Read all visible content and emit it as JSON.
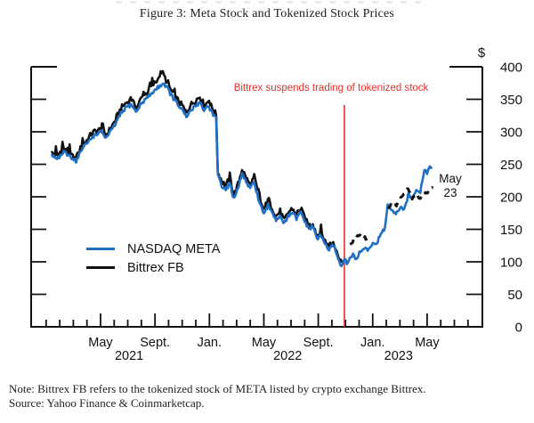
{
  "figure": {
    "title": "Figure 3: Meta Stock and Tokenized Stock Prices"
  },
  "annotations": {
    "currency": "$",
    "suspension": "Bittrex suspends trading of tokenized stock",
    "last_point": {
      "line1": "May",
      "line2": "23"
    }
  },
  "legend": [
    {
      "label": "NASDAQ META",
      "color": "#1f6fc5"
    },
    {
      "label": "Bittrex FB",
      "color": "#111111"
    }
  ],
  "notes": {
    "note": "Note: Bittrex FB refers to the tokenized stock of META listed by crypto exchange Bittrex.",
    "source": "Source: Yahoo Finance & Coinmarketcap."
  },
  "colors": {
    "meta_blue": "#1f6fc5",
    "bittrex_black": "#111111",
    "event_red": "#e3312d",
    "axis": "#111111"
  },
  "chart_data": {
    "type": "line",
    "title": "Figure 3: Meta Stock and Tokenized Stock Prices",
    "ylabel": "$",
    "ylim": [
      0,
      400
    ],
    "y_ticks": [
      400,
      350,
      300,
      250,
      200,
      150,
      100,
      50,
      0
    ],
    "x_unit": "months_since_jan_2021",
    "xlim": [
      -1.1,
      32.06
    ],
    "grid": false,
    "legend_position": "inside-left",
    "x_major_ticks": [
      {
        "m": 4,
        "label": "May"
      },
      {
        "m": 8,
        "label": "Sept."
      },
      {
        "m": 12,
        "label": "Jan."
      },
      {
        "m": 16,
        "label": "May"
      },
      {
        "m": 20,
        "label": "Sept."
      },
      {
        "m": 24,
        "label": "Jan."
      },
      {
        "m": 28,
        "label": "May"
      }
    ],
    "x_year_labels": [
      {
        "m": 6.1,
        "label": "2021"
      },
      {
        "m": 17.75,
        "label": "2022"
      },
      {
        "m": 25.9,
        "label": "2023"
      }
    ],
    "event_line": {
      "m": 21.92,
      "label": "Bittrex suspends trading of tokenized stock",
      "color": "#e3312d"
    },
    "series": [
      {
        "name": "Bittrex FB",
        "color": "#111111",
        "style": "solid",
        "width": 2.6,
        "noise": 4.5,
        "spike": 12,
        "segments": [
          [
            [
              0.4,
              268
            ],
            [
              0.8,
              262
            ],
            [
              1.2,
              274
            ],
            [
              1.8,
              264
            ],
            [
              2.2,
              258
            ],
            [
              2.6,
              278
            ],
            [
              3.0,
              287
            ],
            [
              3.4,
              299
            ],
            [
              3.8,
              302
            ],
            [
              4.1,
              304
            ],
            [
              4.4,
              294
            ],
            [
              4.8,
              308
            ],
            [
              5.1,
              318
            ],
            [
              5.5,
              336
            ],
            [
              5.9,
              345
            ],
            [
              6.3,
              350
            ],
            [
              6.6,
              335
            ],
            [
              7.0,
              352
            ],
            [
              7.4,
              360
            ],
            [
              7.8,
              371
            ],
            [
              8.2,
              380
            ],
            [
              8.5,
              393
            ],
            [
              8.9,
              376
            ],
            [
              9.2,
              363
            ],
            [
              9.6,
              351
            ],
            [
              10.0,
              340
            ],
            [
              10.3,
              329
            ],
            [
              10.6,
              341
            ],
            [
              11.0,
              349
            ],
            [
              11.3,
              354
            ],
            [
              11.6,
              339
            ],
            [
              11.9,
              347
            ],
            [
              12.2,
              337
            ],
            [
              12.5,
              326
            ],
            [
              12.62,
              238
            ],
            [
              12.9,
              225
            ],
            [
              13.2,
              216
            ],
            [
              13.5,
              230
            ],
            [
              13.8,
              202
            ],
            [
              14.1,
              219
            ],
            [
              14.4,
              243
            ],
            [
              14.7,
              229
            ],
            [
              15.0,
              218
            ],
            [
              15.3,
              231
            ],
            [
              15.6,
              202
            ],
            [
              16.0,
              178
            ],
            [
              16.3,
              193
            ],
            [
              16.6,
              184
            ],
            [
              16.9,
              170
            ],
            [
              17.2,
              178
            ],
            [
              17.5,
              163
            ],
            [
              17.8,
              176
            ],
            [
              18.1,
              182
            ],
            [
              18.4,
              171
            ],
            [
              18.7,
              182
            ],
            [
              19.0,
              168
            ],
            [
              19.3,
              155
            ],
            [
              19.6,
              160
            ],
            [
              19.9,
              141
            ],
            [
              20.2,
              146
            ],
            [
              20.5,
              132
            ],
            [
              20.8,
              123
            ],
            [
              21.1,
              131
            ],
            [
              21.35,
              119
            ],
            [
              21.55,
              103
            ],
            [
              21.75,
              99
            ]
          ]
        ]
      },
      {
        "name": "NASDAQ META",
        "color": "#1f6fc5",
        "style": "solid",
        "width": 2.6,
        "noise": 3,
        "spike": 0,
        "segments": [
          [
            [
              0.4,
              265
            ],
            [
              0.8,
              258
            ],
            [
              1.3,
              268
            ],
            [
              1.8,
              262
            ],
            [
              2.2,
              255
            ],
            [
              2.6,
              272
            ],
            [
              3.0,
              282
            ],
            [
              3.4,
              292
            ],
            [
              3.8,
              298
            ],
            [
              4.1,
              300
            ],
            [
              4.4,
              290
            ],
            [
              4.8,
              302
            ],
            [
              5.1,
              312
            ],
            [
              5.5,
              328
            ],
            [
              5.9,
              338
            ],
            [
              6.3,
              342
            ],
            [
              6.6,
              330
            ],
            [
              7.0,
              344
            ],
            [
              7.4,
              352
            ],
            [
              7.8,
              360
            ],
            [
              8.2,
              368
            ],
            [
              8.6,
              375
            ],
            [
              8.9,
              368
            ],
            [
              9.2,
              356
            ],
            [
              9.6,
              344
            ],
            [
              10.0,
              333
            ],
            [
              10.3,
              322
            ],
            [
              10.6,
              332
            ],
            [
              11.0,
              340
            ],
            [
              11.3,
              346
            ],
            [
              11.6,
              333
            ],
            [
              11.9,
              340
            ],
            [
              12.2,
              330
            ],
            [
              12.5,
              320
            ],
            [
              12.62,
              232
            ],
            [
              12.9,
              218
            ],
            [
              13.2,
              210
            ],
            [
              13.5,
              222
            ],
            [
              13.8,
              196
            ],
            [
              14.1,
              212
            ],
            [
              14.4,
              236
            ],
            [
              14.7,
              222
            ],
            [
              15.0,
              212
            ],
            [
              15.3,
              224
            ],
            [
              15.6,
              196
            ],
            [
              16.0,
              172
            ],
            [
              16.3,
              186
            ],
            [
              16.6,
              178
            ],
            [
              16.9,
              164
            ],
            [
              17.2,
              172
            ],
            [
              17.5,
              158
            ],
            [
              17.8,
              170
            ],
            [
              18.1,
              176
            ],
            [
              18.4,
              166
            ],
            [
              18.7,
              176
            ],
            [
              19.0,
              163
            ],
            [
              19.3,
              150
            ],
            [
              19.6,
              155
            ],
            [
              19.9,
              136
            ],
            [
              20.2,
              140
            ],
            [
              20.5,
              128
            ],
            [
              20.8,
              118
            ],
            [
              21.1,
              126
            ],
            [
              21.35,
              114
            ],
            [
              21.55,
              99
            ],
            [
              21.7,
              92
            ],
            [
              21.9,
              106
            ],
            [
              22.1,
              97
            ],
            [
              22.3,
              104
            ],
            [
              22.55,
              110
            ],
            [
              22.8,
              105
            ],
            [
              23.1,
              116
            ],
            [
              23.4,
              122
            ],
            [
              23.7,
              117
            ],
            [
              24.0,
              130
            ],
            [
              24.3,
              127
            ],
            [
              24.6,
              143
            ],
            [
              24.9,
              152
            ],
            [
              25.1,
              188
            ],
            [
              25.4,
              178
            ],
            [
              25.7,
              172
            ],
            [
              26.0,
              184
            ],
            [
              26.3,
              178
            ],
            [
              26.6,
              202
            ],
            [
              26.9,
              198
            ],
            [
              27.2,
              212
            ],
            [
              27.5,
              208
            ],
            [
              27.8,
              243
            ],
            [
              28.0,
              236
            ],
            [
              28.2,
              248
            ],
            [
              28.35,
              246
            ]
          ]
        ]
      },
      {
        "name": "Bittrex FB (after suspension)",
        "color": "#111111",
        "style": "dashed",
        "width": 3,
        "noise": 2,
        "spike": 0,
        "segments": [
          [
            [
              22.35,
              127
            ],
            [
              22.6,
              133
            ],
            [
              22.9,
              139
            ],
            [
              23.2,
              143
            ],
            [
              23.5,
              136
            ],
            [
              23.85,
              139
            ]
          ],
          [
            [
              25.15,
              182
            ],
            [
              25.45,
              192
            ],
            [
              25.75,
              187
            ],
            [
              26.05,
              198
            ],
            [
              26.35,
              207
            ],
            [
              26.6,
              212
            ],
            [
              26.9,
              198
            ],
            [
              27.2,
              203
            ],
            [
              27.5,
              196
            ],
            [
              27.8,
              206
            ],
            [
              28.1,
              208
            ],
            [
              28.45,
              214
            ]
          ]
        ]
      }
    ]
  }
}
